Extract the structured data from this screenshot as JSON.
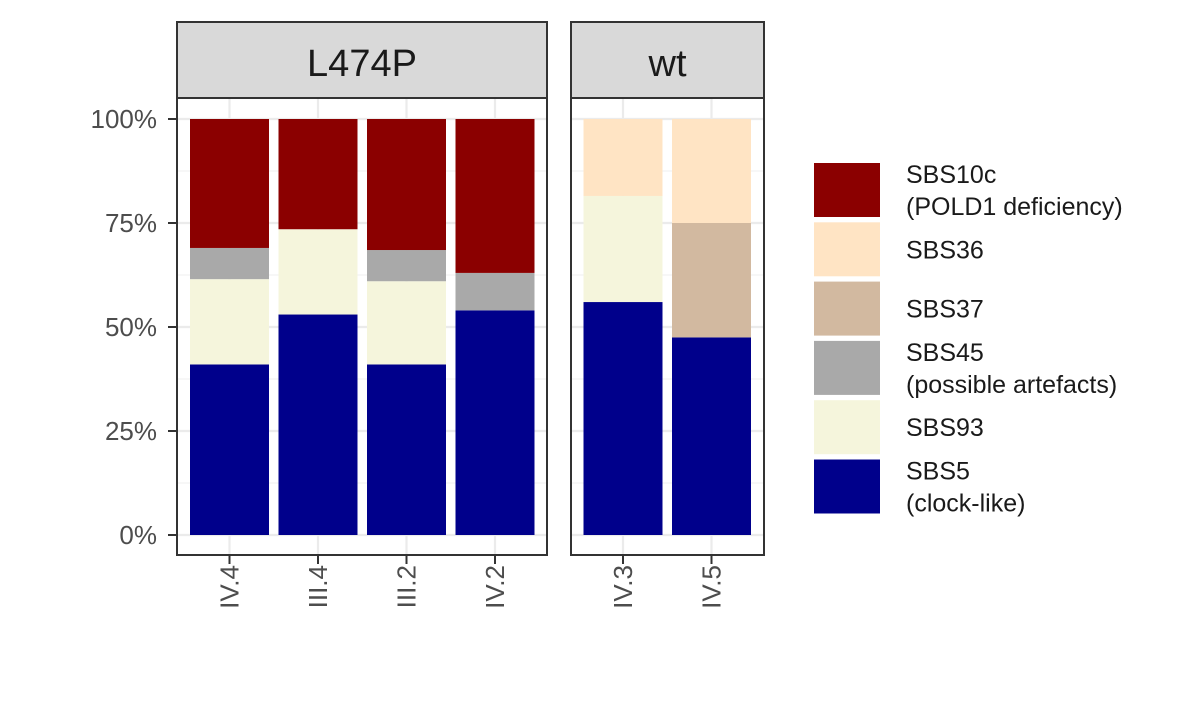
{
  "chart_data": {
    "type": "bar",
    "stacked": true,
    "y_ticks": [
      "0%",
      "25%",
      "50%",
      "75%",
      "100%"
    ],
    "ylim": [
      0,
      1
    ],
    "grid": true,
    "legend_position": "right",
    "series_order": [
      "SBS10c",
      "SBS36",
      "SBS37",
      "SBS45",
      "SBS93",
      "SBS5"
    ],
    "series": [
      {
        "key": "SBS10c",
        "name": "SBS10c",
        "sublabel": "(POLD1 deficiency)",
        "color": "#8B0000"
      },
      {
        "key": "SBS36",
        "name": "SBS36",
        "sublabel": "",
        "color": "#FFE4C4"
      },
      {
        "key": "SBS37",
        "name": "SBS37",
        "sublabel": "",
        "color": "#D2B9A0"
      },
      {
        "key": "SBS45",
        "name": "SBS45",
        "sublabel": "(possible artefacts)",
        "color": "#A9A9A9"
      },
      {
        "key": "SBS93",
        "name": "SBS93",
        "sublabel": "",
        "color": "#F5F5DC"
      },
      {
        "key": "SBS5",
        "name": "SBS5",
        "sublabel": "(clock-like)",
        "color": "#00008B"
      }
    ],
    "panels": [
      {
        "label": "L474P",
        "bars": [
          {
            "category": "IV.4",
            "values": {
              "SBS5": 0.41,
              "SBS93": 0.205,
              "SBS45": 0.075,
              "SBS10c": 0.31
            }
          },
          {
            "category": "III.4",
            "values": {
              "SBS5": 0.53,
              "SBS93": 0.205,
              "SBS10c": 0.265
            }
          },
          {
            "category": "III.2",
            "values": {
              "SBS5": 0.41,
              "SBS93": 0.2,
              "SBS45": 0.075,
              "SBS10c": 0.315
            }
          },
          {
            "category": "IV.2",
            "values": {
              "SBS5": 0.54,
              "SBS45": 0.09,
              "SBS10c": 0.37
            }
          }
        ]
      },
      {
        "label": "wt",
        "bars": [
          {
            "category": "IV.3",
            "values": {
              "SBS5": 0.56,
              "SBS93": 0.255,
              "SBS36": 0.185
            }
          },
          {
            "category": "IV.5",
            "values": {
              "SBS5": 0.475,
              "SBS37": 0.275,
              "SBS36": 0.25
            }
          }
        ]
      }
    ]
  }
}
